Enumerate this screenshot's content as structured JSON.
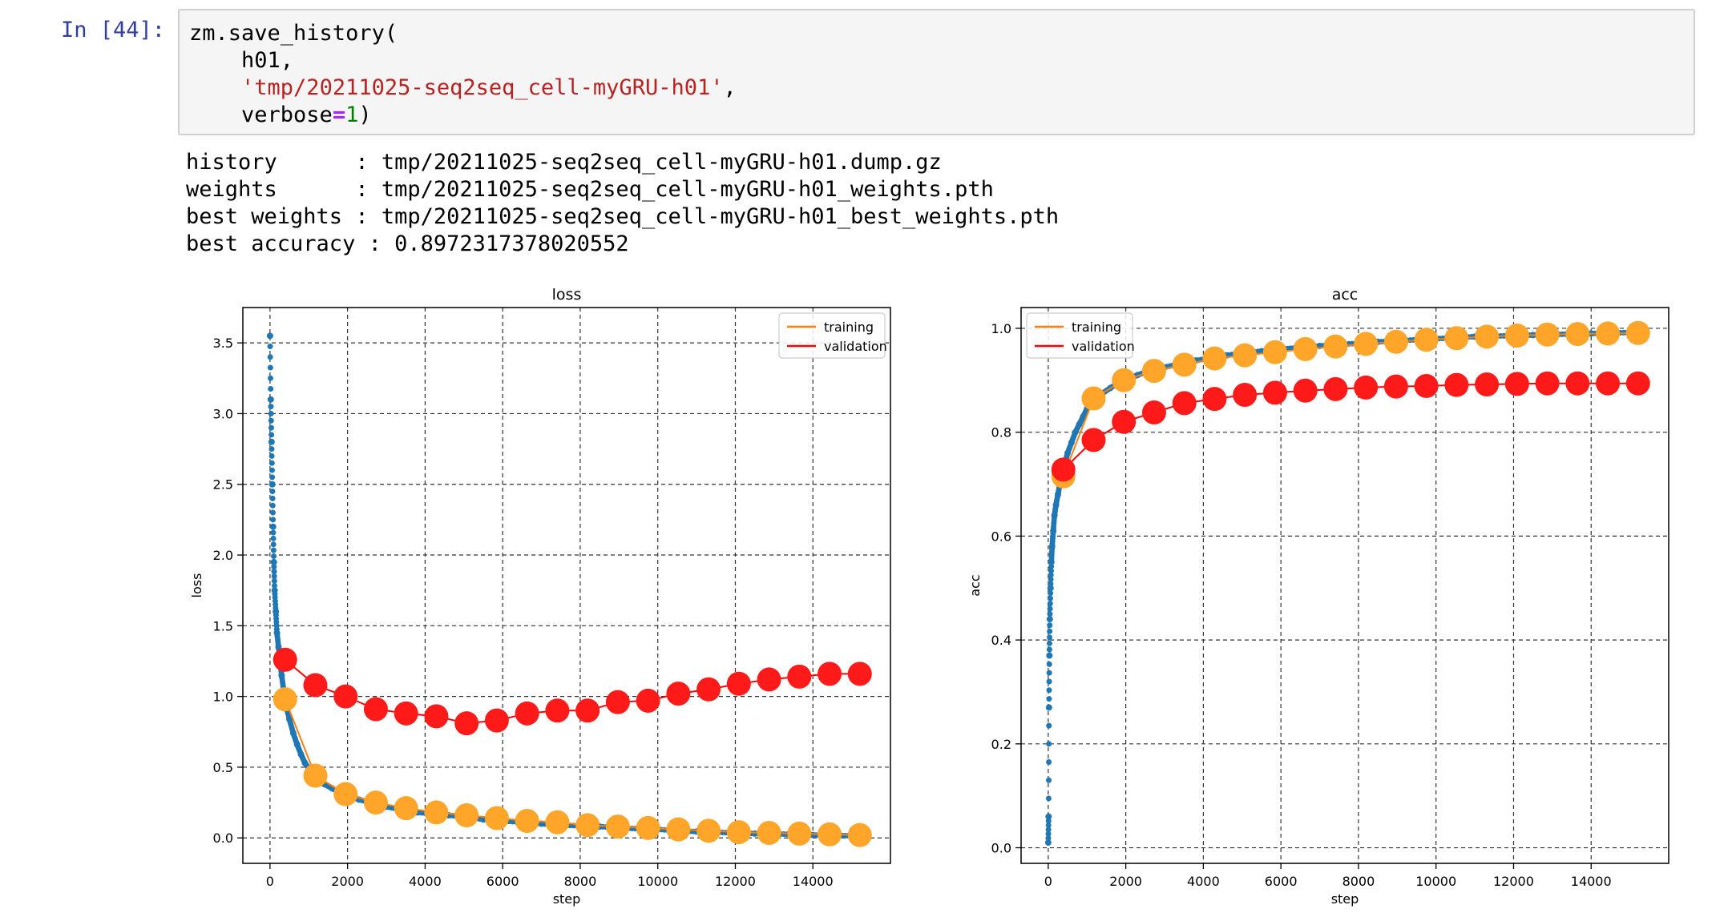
{
  "cell": {
    "prompt": "In [44]:",
    "code": {
      "line1": "zm.save_history(",
      "line2": "    h01,",
      "line3_indent": "    ",
      "line3_string": "'tmp/20211025-seq2seq_cell-myGRU-h01'",
      "line3_end": ",",
      "line4_prefix": "    verbose",
      "line4_op": "=",
      "line4_num": "1",
      "line4_end": ")"
    }
  },
  "output": {
    "lines": [
      "history      : tmp/20211025-seq2seq_cell-myGRU-h01.dump.gz",
      "weights      : tmp/20211025-seq2seq_cell-myGRU-h01_weights.pth",
      "best weights : tmp/20211025-seq2seq_cell-myGRU-h01_best_weights.pth",
      "best accuracy : 0.8972317378020552"
    ]
  },
  "colors": {
    "training": "#ff7f0e",
    "validation": "#ff0000",
    "training_marker": "#ffa52a",
    "validation_marker": "#ff1a1a",
    "steps": "#1f77b4"
  },
  "chart_data": [
    {
      "type": "line",
      "title": "loss",
      "xlabel": "step",
      "ylabel": "loss",
      "xlim": [
        -700,
        16000
      ],
      "ylim": [
        -0.18,
        3.75
      ],
      "xticks": [
        0,
        2000,
        4000,
        6000,
        8000,
        10000,
        12000,
        14000
      ],
      "yticks": [
        0.0,
        0.5,
        1.0,
        1.5,
        2.0,
        2.5,
        3.0,
        3.5
      ],
      "grid": true,
      "legend": "top-right",
      "series": [
        {
          "name": "training",
          "x": [
            390,
            1170,
            1950,
            2730,
            3510,
            4290,
            5070,
            5850,
            6630,
            7410,
            8190,
            8970,
            9750,
            10530,
            11310,
            12090,
            12870,
            13650,
            14430,
            15210
          ],
          "values": [
            0.98,
            0.44,
            0.31,
            0.25,
            0.21,
            0.18,
            0.16,
            0.14,
            0.12,
            0.11,
            0.09,
            0.08,
            0.07,
            0.06,
            0.05,
            0.04,
            0.035,
            0.03,
            0.025,
            0.02
          ]
        },
        {
          "name": "validation",
          "x": [
            390,
            1170,
            1950,
            2730,
            3510,
            4290,
            5070,
            5850,
            6630,
            7410,
            8190,
            8970,
            9750,
            10530,
            11310,
            12090,
            12870,
            13650,
            14430,
            15210
          ],
          "values": [
            1.26,
            1.08,
            1.0,
            0.91,
            0.88,
            0.86,
            0.81,
            0.83,
            0.88,
            0.9,
            0.9,
            0.96,
            0.97,
            1.02,
            1.05,
            1.09,
            1.12,
            1.14,
            1.16,
            1.16
          ]
        }
      ],
      "steps": {
        "x": [
          0,
          20,
          40,
          60,
          80,
          100,
          120,
          150,
          180,
          220,
          260,
          300,
          350,
          400,
          450,
          500,
          600,
          700,
          800,
          900,
          1000,
          1200,
          1400,
          1600,
          1800,
          2000,
          2300,
          2600,
          3000,
          3400,
          3800,
          4200,
          4600,
          5000,
          5500,
          6000,
          6500,
          7000,
          7500,
          8000,
          8500,
          9000,
          9500,
          10000,
          10500,
          11000,
          11500,
          12000,
          12500,
          13000,
          13500,
          14000,
          14500,
          15000,
          15200
        ],
        "values": [
          3.55,
          3.1,
          2.8,
          2.5,
          2.2,
          1.95,
          1.75,
          1.6,
          1.45,
          1.35,
          1.25,
          1.15,
          1.05,
          0.98,
          0.9,
          0.84,
          0.74,
          0.66,
          0.59,
          0.53,
          0.49,
          0.43,
          0.38,
          0.35,
          0.32,
          0.3,
          0.27,
          0.25,
          0.22,
          0.2,
          0.18,
          0.17,
          0.16,
          0.15,
          0.13,
          0.12,
          0.11,
          0.1,
          0.09,
          0.085,
          0.08,
          0.07,
          0.065,
          0.06,
          0.05,
          0.045,
          0.04,
          0.035,
          0.03,
          0.028,
          0.025,
          0.02,
          0.018,
          0.015,
          0.012
        ]
      }
    },
    {
      "type": "line",
      "title": "acc",
      "xlabel": "step",
      "ylabel": "acc",
      "xlim": [
        -700,
        16000
      ],
      "ylim": [
        -0.03,
        1.04
      ],
      "xticks": [
        0,
        2000,
        4000,
        6000,
        8000,
        10000,
        12000,
        14000
      ],
      "yticks": [
        0.0,
        0.2,
        0.4,
        0.6,
        0.8,
        1.0
      ],
      "grid": true,
      "legend": "top-left",
      "series": [
        {
          "name": "training",
          "x": [
            390,
            1170,
            1950,
            2730,
            3510,
            4290,
            5070,
            5850,
            6630,
            7410,
            8190,
            8970,
            9750,
            10530,
            11310,
            12090,
            12870,
            13650,
            14430,
            15210
          ],
          "values": [
            0.715,
            0.865,
            0.9,
            0.918,
            0.93,
            0.942,
            0.948,
            0.954,
            0.96,
            0.965,
            0.97,
            0.974,
            0.978,
            0.981,
            0.984,
            0.986,
            0.988,
            0.989,
            0.99,
            0.991
          ]
        },
        {
          "name": "validation",
          "x": [
            390,
            1170,
            1950,
            2730,
            3510,
            4290,
            5070,
            5850,
            6630,
            7410,
            8190,
            8970,
            9750,
            10530,
            11310,
            12090,
            12870,
            13650,
            14430,
            15210
          ],
          "values": [
            0.728,
            0.785,
            0.82,
            0.838,
            0.856,
            0.864,
            0.872,
            0.876,
            0.88,
            0.883,
            0.886,
            0.888,
            0.889,
            0.891,
            0.892,
            0.893,
            0.894,
            0.894,
            0.894,
            0.894
          ]
        }
      ],
      "steps": {
        "x": [
          0,
          10,
          20,
          30,
          40,
          60,
          80,
          100,
          130,
          160,
          200,
          250,
          300,
          350,
          400,
          450,
          500,
          600,
          700,
          800,
          900,
          1000,
          1200,
          1400,
          1600,
          1800,
          2000,
          2300,
          2600,
          3000,
          3400,
          3800,
          4200,
          4600,
          5000,
          5500,
          6000,
          6500,
          7000,
          7500,
          8000,
          8500,
          9000,
          9500,
          10000,
          10500,
          11000,
          11500,
          12000,
          12500,
          13000,
          13500,
          14000,
          14500,
          15000
        ],
        "values": [
          0.01,
          0.06,
          0.27,
          0.37,
          0.44,
          0.5,
          0.55,
          0.58,
          0.61,
          0.64,
          0.66,
          0.68,
          0.7,
          0.715,
          0.73,
          0.745,
          0.76,
          0.78,
          0.8,
          0.815,
          0.83,
          0.845,
          0.86,
          0.875,
          0.885,
          0.895,
          0.9,
          0.91,
          0.918,
          0.925,
          0.932,
          0.938,
          0.943,
          0.948,
          0.952,
          0.956,
          0.96,
          0.963,
          0.966,
          0.969,
          0.971,
          0.974,
          0.976,
          0.978,
          0.98,
          0.982,
          0.984,
          0.985,
          0.986,
          0.987,
          0.988,
          0.989,
          0.99,
          0.991,
          0.992
        ]
      }
    }
  ]
}
